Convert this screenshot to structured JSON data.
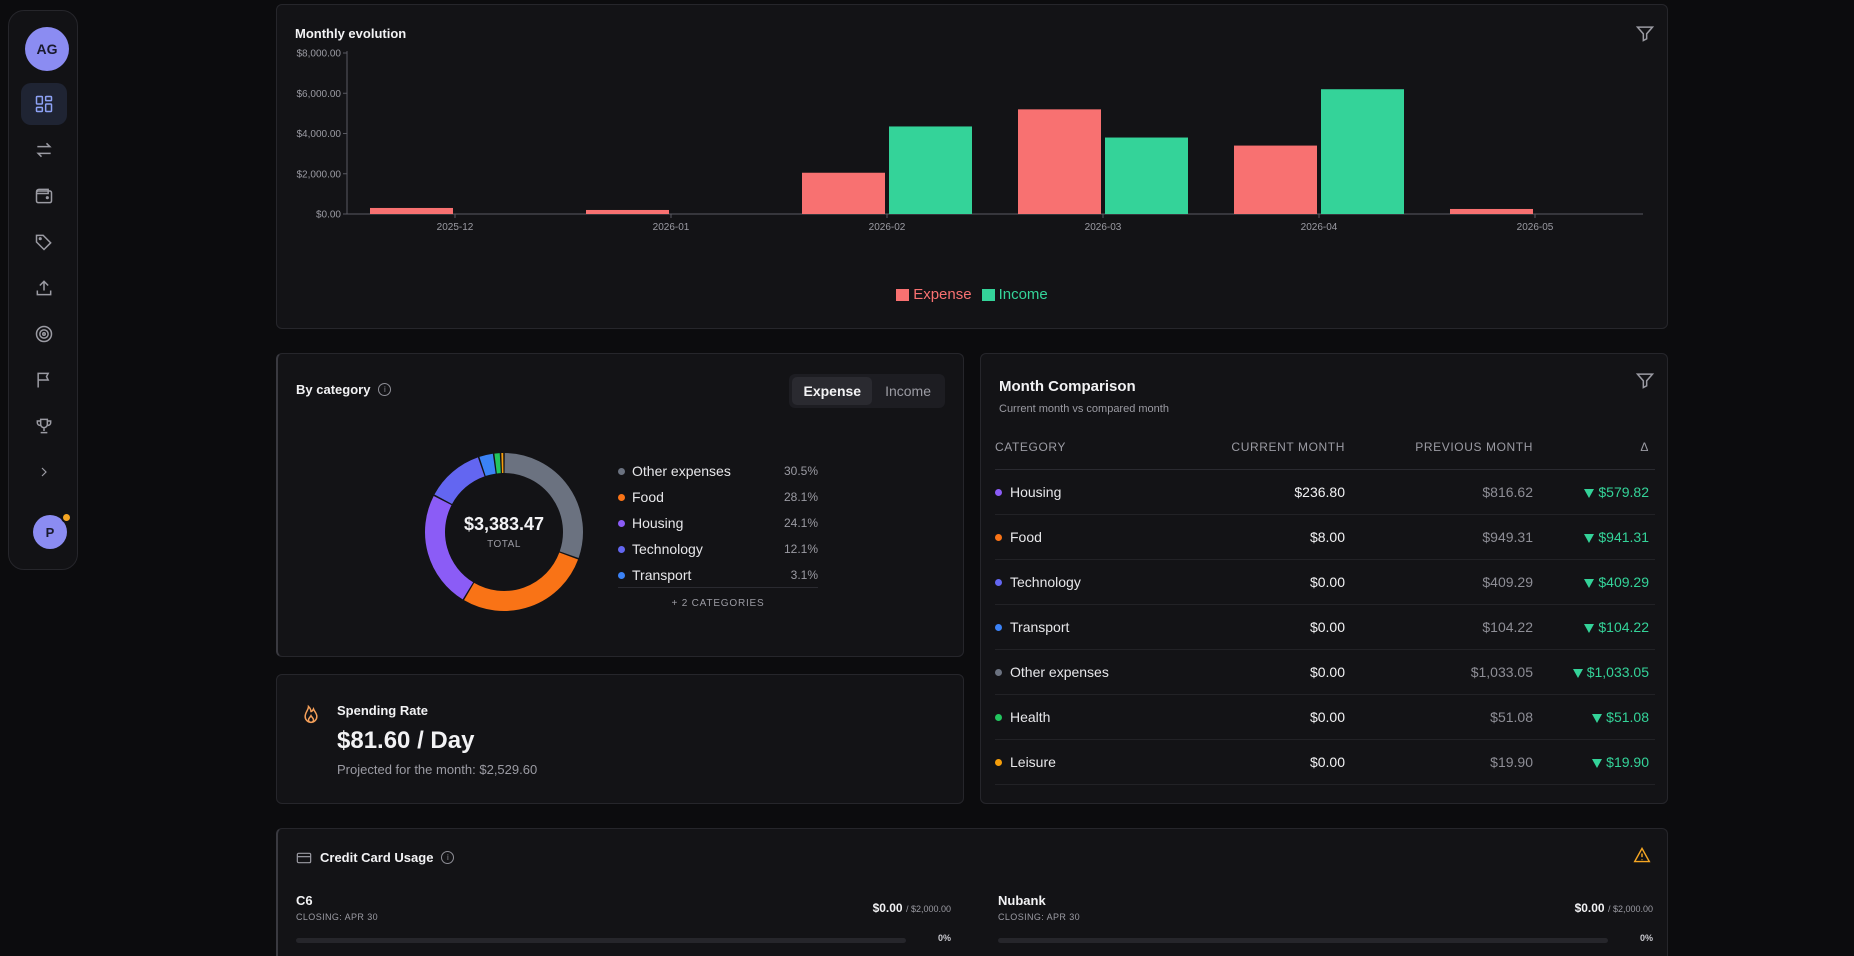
{
  "sidebar": {
    "avatar_initials": "AG",
    "user_initial": "P",
    "items": [
      {
        "icon": "dashboard-icon",
        "active": true
      },
      {
        "icon": "transfer-icon",
        "active": false
      },
      {
        "icon": "wallet-icon",
        "active": false
      },
      {
        "icon": "tags-icon",
        "active": false
      },
      {
        "icon": "upload-icon",
        "active": false
      },
      {
        "icon": "target-icon",
        "active": false
      },
      {
        "icon": "flag-icon",
        "active": false
      },
      {
        "icon": "trophy-icon",
        "active": false
      },
      {
        "icon": "chevron-right-icon",
        "active": false
      }
    ]
  },
  "monthly_evolution": {
    "title": "Monthly evolution",
    "chart_data": {
      "type": "bar",
      "categories": [
        "2025-12",
        "2026-01",
        "2026-02",
        "2026-03",
        "2026-04",
        "2026-05"
      ],
      "series": [
        {
          "name": "Expense",
          "color": "#f87171",
          "values": [
            300,
            200,
            2050,
            5200,
            3400,
            250
          ]
        },
        {
          "name": "Income",
          "color": "#34d399",
          "values": [
            0,
            0,
            4350,
            3800,
            6200,
            0
          ]
        }
      ],
      "ylim": [
        0,
        8000
      ],
      "yticks": [
        "$0.00",
        "$2,000.00",
        "$4,000.00",
        "$6,000.00",
        "$8,000.00"
      ],
      "legend": "bottom-center"
    }
  },
  "by_category": {
    "title": "By category",
    "toggle": {
      "expense": "Expense",
      "income": "Income",
      "selected": "Expense"
    },
    "total": "$3,383.47",
    "total_label": "TOTAL",
    "items": [
      {
        "name": "Other expenses",
        "pct": "30.5%",
        "value": 30.5,
        "color": "#6b7280"
      },
      {
        "name": "Food",
        "pct": "28.1%",
        "value": 28.1,
        "color": "#f97316"
      },
      {
        "name": "Housing",
        "pct": "24.1%",
        "value": 24.1,
        "color": "#8b5cf6"
      },
      {
        "name": "Technology",
        "pct": "12.1%",
        "value": 12.1,
        "color": "#6366f1"
      },
      {
        "name": "Transport",
        "pct": "3.1%",
        "value": 3.1,
        "color": "#3b82f6"
      }
    ],
    "hidden_slices": [
      {
        "value": 1.4,
        "color": "#22c55e"
      },
      {
        "value": 0.7,
        "color": "#f59e0b"
      }
    ],
    "more": "+ 2 CATEGORIES"
  },
  "spending_rate": {
    "title": "Spending Rate",
    "value": "$81.60 / Day",
    "subtitle": "Projected for the month: $2,529.60"
  },
  "month_comparison": {
    "title": "Month Comparison",
    "subtitle": "Current month vs compared month",
    "headers": [
      "CATEGORY",
      "CURRENT MONTH",
      "PREVIOUS MONTH",
      "Δ"
    ],
    "rows": [
      {
        "category": "Housing",
        "color": "#8b5cf6",
        "current": "$236.80",
        "previous": "$816.62",
        "delta": "$579.82"
      },
      {
        "category": "Food",
        "color": "#f97316",
        "current": "$8.00",
        "previous": "$949.31",
        "delta": "$941.31"
      },
      {
        "category": "Technology",
        "color": "#6366f1",
        "current": "$0.00",
        "previous": "$409.29",
        "delta": "$409.29"
      },
      {
        "category": "Transport",
        "color": "#3b82f6",
        "current": "$0.00",
        "previous": "$104.22",
        "delta": "$104.22"
      },
      {
        "category": "Other expenses",
        "color": "#6b7280",
        "current": "$0.00",
        "previous": "$1,033.05",
        "delta": "$1,033.05"
      },
      {
        "category": "Health",
        "color": "#22c55e",
        "current": "$0.00",
        "previous": "$51.08",
        "delta": "$51.08"
      },
      {
        "category": "Leisure",
        "color": "#f59e0b",
        "current": "$0.00",
        "previous": "$19.90",
        "delta": "$19.90"
      }
    ]
  },
  "credit_card_usage": {
    "title": "Credit Card Usage",
    "cards": [
      {
        "name": "C6",
        "closing": "CLOSING: APR 30",
        "used": "$0.00",
        "limit": "/ $2,000.00",
        "pct": "0%",
        "fill": 0
      },
      {
        "name": "Nubank",
        "closing": "CLOSING: APR 30",
        "used": "$0.00",
        "limit": "/ $2,000.00",
        "pct": "0%",
        "fill": 0
      }
    ]
  }
}
